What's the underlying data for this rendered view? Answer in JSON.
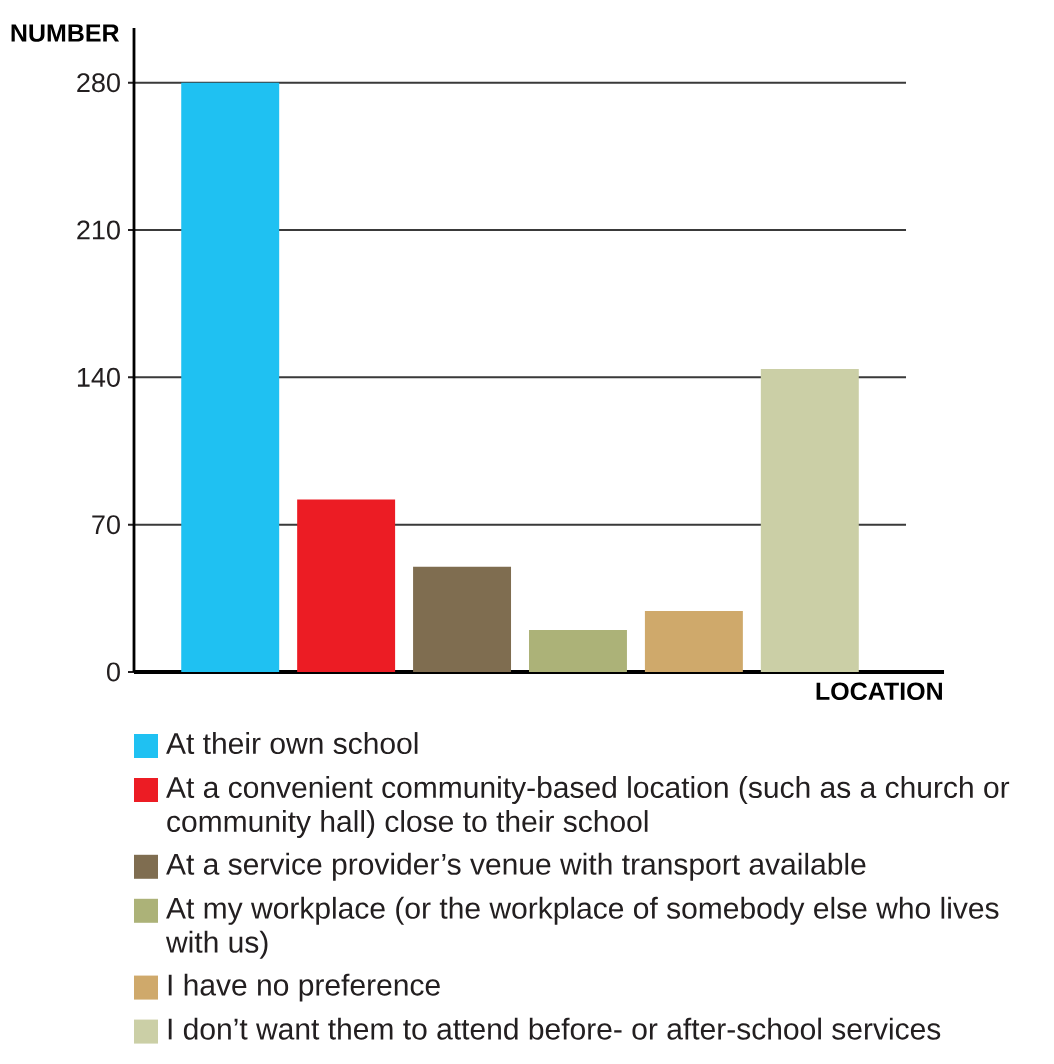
{
  "chart_data": {
    "type": "bar",
    "categories": [
      null,
      null,
      null,
      null,
      null,
      null
    ],
    "series": [
      {
        "name": "At their own school",
        "color": "#1fc1f2",
        "values": [
          280,
          null,
          null,
          null,
          null,
          null
        ]
      },
      {
        "name": "At a convenient community-based location (such as a church or community hall) close to their school",
        "color": "#ec1c24",
        "values": [
          null,
          82,
          null,
          null,
          null,
          null
        ]
      },
      {
        "name": "At a service provider’s venue with transport available",
        "color": "#7f6d50",
        "values": [
          null,
          null,
          50,
          null,
          null,
          null
        ]
      },
      {
        "name": "At my workplace (or the workplace of somebody else who lives with us)",
        "color": "#acb278",
        "values": [
          null,
          null,
          null,
          20,
          null,
          null
        ]
      },
      {
        "name": "I have no preference",
        "color": "#cfa96b",
        "values": [
          null,
          null,
          null,
          null,
          29,
          null
        ]
      },
      {
        "name": "I don’t want them to attend before- or after-school services",
        "color": "#cbcfa6",
        "values": [
          null,
          null,
          null,
          null,
          null,
          144
        ]
      }
    ],
    "ylabel": "NUMBER",
    "xlabel": "LOCATION",
    "ylim": [
      0,
      306
    ],
    "yticks": [
      0,
      70,
      140,
      210,
      280
    ],
    "grid": "y",
    "legend": "bottom",
    "tick_labels": "y"
  }
}
